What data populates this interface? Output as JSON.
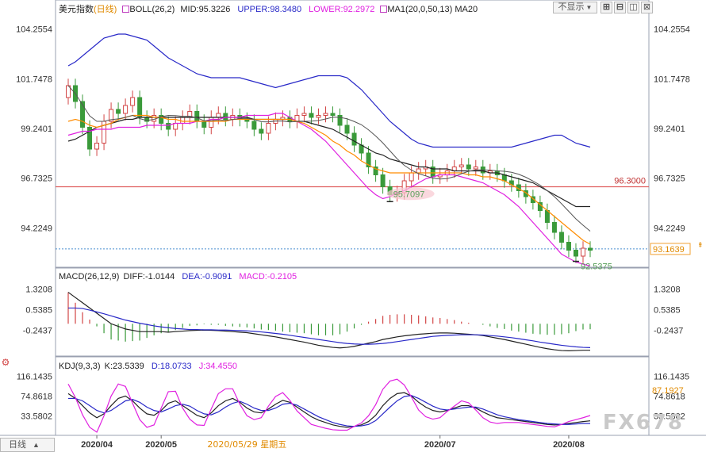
{
  "instrument": "美元指数",
  "period": "日线",
  "panels": {
    "price": {
      "boll_label": "BOLL(26,2)",
      "mid_label": "MID:95.3226",
      "upper_label": "UPPER:98.3480",
      "lower_label": "LOWER:92.2972",
      "ma_label": "MA1(20,0,50,13) MA20",
      "y_ticks": [
        "104.2554",
        "101.7478",
        "99.2401",
        "96.7325",
        "94.2249"
      ],
      "level_line": {
        "value": 96.3,
        "label": "96.3000"
      },
      "low_marker": {
        "value": 95.7097,
        "label": "95.7097"
      },
      "last_low_marker": {
        "value": 92.5375,
        "label": "92.5375"
      },
      "current_price": {
        "value": 93.1639,
        "label": "93.1639"
      }
    },
    "macd": {
      "title": "MACD(26,12,9)",
      "diff_label": "DIFF:-1.0144",
      "dea_label": "DEA:-0.9091",
      "macd_label": "MACD:-0.2105",
      "y_ticks": [
        "1.3208",
        "0.5385",
        "-0.2437"
      ]
    },
    "kdj": {
      "title": "KDJ(9,3,3)",
      "k_label": "K:23.5339",
      "d_label": "D:18.0733",
      "j_label": "J:34.4550",
      "y_ticks": [
        "116.1435",
        "74.8618",
        "33.5802"
      ],
      "right_badge": "87.1927"
    }
  },
  "x_axis": {
    "labels": [
      "2020/04",
      "2020/05",
      "2020/07",
      "2020/08"
    ],
    "cursor_date": "2020/05/29 星期五",
    "period_button": "日线"
  },
  "toolbar": {
    "display_button": "不显示"
  },
  "watermark": "FX678",
  "colors": {
    "up": "#d24545",
    "down": "#3a9a3a",
    "upper_band": "#2929c8",
    "mid_band": "#222222",
    "lower_band": "#e020e0",
    "ma": "#ff8c00",
    "level": "#e06060",
    "diff": "#222222",
    "dea": "#2929c8",
    "k": "#222222",
    "d": "#2929c8",
    "j": "#e020e0"
  },
  "chart_data": [
    {
      "type": "candlestick",
      "title": "美元指数",
      "ylim": [
        92.2,
        105.0
      ],
      "series": [
        {
          "name": "close",
          "values": [
            101.4,
            100.6,
            99.3,
            98.2,
            98.5,
            99.6,
            100.2,
            100.0,
            100.4,
            100.8,
            99.8,
            99.6,
            99.9,
            99.5,
            99.2,
            99.5,
            99.8,
            100.1,
            99.6,
            99.3,
            99.8,
            100.0,
            99.7,
            99.9,
            99.7,
            99.6,
            99.2,
            99.0,
            99.5,
            99.7,
            99.8,
            99.6,
            99.9,
            100.0,
            99.8,
            99.9,
            100.0,
            99.9,
            99.4,
            99.0,
            98.4,
            98.0,
            97.3,
            96.9,
            96.3,
            95.9,
            96.0,
            96.6,
            97.0,
            97.2,
            97.3,
            96.8,
            96.9,
            97.1,
            97.3,
            97.4,
            97.2,
            97.3,
            97.0,
            97.1,
            96.9,
            96.6,
            96.4,
            96.1,
            95.8,
            95.5,
            95.1,
            94.5,
            94.0,
            93.5,
            93.1,
            92.8,
            93.2,
            93.1
          ]
        },
        {
          "name": "MID",
          "values": [
            98.6,
            98.7,
            98.9,
            99.1,
            99.3,
            99.4,
            99.5,
            99.6,
            99.7,
            99.7,
            99.8,
            99.8,
            99.8,
            99.8,
            99.8,
            99.8,
            99.8,
            99.8,
            99.8,
            99.8,
            99.8,
            99.8,
            99.8,
            99.8,
            99.8,
            99.8,
            99.7,
            99.7,
            99.7,
            99.7,
            99.7,
            99.7,
            99.6,
            99.6,
            99.5,
            99.4,
            99.3,
            99.2,
            99.0,
            98.8,
            98.6,
            98.4,
            98.2,
            98.0,
            97.9,
            97.7,
            97.6,
            97.5,
            97.4,
            97.3,
            97.3,
            97.2,
            97.2,
            97.2,
            97.1,
            97.1,
            97.1,
            97.1,
            97.1,
            97.0,
            97.0,
            96.9,
            96.8,
            96.7,
            96.6,
            96.5,
            96.3,
            96.1,
            95.9,
            95.7,
            95.5,
            95.3,
            95.3,
            95.3
          ]
        },
        {
          "name": "UPPER",
          "values": [
            102.4,
            102.6,
            102.9,
            103.2,
            103.5,
            103.8,
            103.9,
            104.0,
            104.0,
            103.9,
            103.8,
            103.7,
            103.4,
            103.1,
            102.8,
            102.6,
            102.4,
            102.2,
            102.0,
            101.9,
            101.8,
            101.8,
            101.8,
            101.8,
            101.8,
            101.7,
            101.6,
            101.5,
            101.4,
            101.3,
            101.4,
            101.5,
            101.6,
            101.7,
            101.8,
            101.9,
            101.9,
            101.9,
            101.9,
            101.8,
            101.5,
            101.2,
            100.8,
            100.4,
            100.0,
            99.6,
            99.3,
            99.0,
            98.7,
            98.5,
            98.4,
            98.3,
            98.3,
            98.3,
            98.3,
            98.3,
            98.3,
            98.3,
            98.3,
            98.3,
            98.3,
            98.3,
            98.3,
            98.4,
            98.5,
            98.6,
            98.7,
            98.8,
            98.9,
            98.9,
            98.7,
            98.5,
            98.4,
            98.3
          ]
        },
        {
          "name": "LOWER",
          "values": [
            98.9,
            99.0,
            99.1,
            99.1,
            99.2,
            99.2,
            99.2,
            99.3,
            99.3,
            99.3,
            99.3,
            99.4,
            99.4,
            99.4,
            99.4,
            99.5,
            99.5,
            99.5,
            99.6,
            99.6,
            99.7,
            99.7,
            99.8,
            99.8,
            99.8,
            99.9,
            99.9,
            99.9,
            99.9,
            100.0,
            100.0,
            99.8,
            99.6,
            99.4,
            99.2,
            98.9,
            98.6,
            98.2,
            97.8,
            97.4,
            97.0,
            96.6,
            96.2,
            95.9,
            95.7,
            95.8,
            96.0,
            96.1,
            96.3,
            96.5,
            96.7,
            96.8,
            96.9,
            96.9,
            96.9,
            96.8,
            96.7,
            96.6,
            96.5,
            96.3,
            96.1,
            95.9,
            95.6,
            95.3,
            94.9,
            94.5,
            94.1,
            93.7,
            93.3,
            92.9,
            92.7,
            92.5,
            92.4,
            92.3
          ]
        },
        {
          "name": "MA20",
          "values": [
            99.6,
            99.7,
            99.6,
            99.4,
            99.3,
            99.4,
            99.5,
            99.7,
            99.8,
            99.9,
            99.9,
            99.9,
            99.8,
            99.8,
            99.7,
            99.7,
            99.6,
            99.6,
            99.6,
            99.6,
            99.6,
            99.6,
            99.6,
            99.7,
            99.7,
            99.7,
            99.7,
            99.7,
            99.7,
            99.7,
            99.7,
            99.7,
            99.6,
            99.5,
            99.3,
            99.1,
            98.9,
            98.6,
            98.4,
            98.1,
            97.9,
            97.6,
            97.4,
            97.2,
            97.1,
            97.0,
            97.0,
            97.0,
            97.0,
            97.0,
            97.0,
            97.0,
            97.0,
            97.0,
            97.0,
            97.0,
            96.9,
            96.9,
            96.8,
            96.8,
            96.7,
            96.6,
            96.4,
            96.2,
            96.0,
            95.7,
            95.4,
            95.1,
            94.8,
            94.5,
            94.2,
            93.9,
            93.6,
            93.4
          ]
        }
      ],
      "annotations": [
        {
          "label": "96.3000",
          "y": 96.3
        },
        {
          "label": "95.7097",
          "y": 95.7097
        },
        {
          "label": "92.5375",
          "y": 92.5375
        }
      ]
    },
    {
      "type": "line",
      "title": "MACD(26,12,9)",
      "ylim": [
        -1.2,
        1.7
      ],
      "series": [
        {
          "name": "DIFF",
          "values": [
            1.2,
            1.0,
            0.8,
            0.6,
            0.4,
            0.2,
            0.0,
            -0.1,
            -0.2,
            -0.25,
            -0.3,
            -0.3,
            -0.3,
            -0.3,
            -0.32,
            -0.3,
            -0.28,
            -0.26,
            -0.25,
            -0.24,
            -0.25,
            -0.26,
            -0.28,
            -0.3,
            -0.32,
            -0.34,
            -0.38,
            -0.42,
            -0.46,
            -0.5,
            -0.55,
            -0.6,
            -0.65,
            -0.7,
            -0.76,
            -0.82,
            -0.86,
            -0.9,
            -0.92,
            -0.9,
            -0.86,
            -0.8,
            -0.74,
            -0.68,
            -0.6,
            -0.55,
            -0.5,
            -0.46,
            -0.43,
            -0.4,
            -0.38,
            -0.36,
            -0.35,
            -0.35,
            -0.36,
            -0.38,
            -0.4,
            -0.42,
            -0.45,
            -0.5,
            -0.55,
            -0.6,
            -0.66,
            -0.72,
            -0.78,
            -0.84,
            -0.9,
            -0.95,
            -0.99,
            -1.02,
            -1.03,
            -1.02,
            -1.01,
            -1.01
          ]
        },
        {
          "name": "DEA",
          "values": [
            0.6,
            0.6,
            0.58,
            0.52,
            0.45,
            0.38,
            0.3,
            0.22,
            0.14,
            0.08,
            0.02,
            -0.03,
            -0.08,
            -0.12,
            -0.15,
            -0.18,
            -0.2,
            -0.22,
            -0.22,
            -0.23,
            -0.23,
            -0.24,
            -0.24,
            -0.25,
            -0.26,
            -0.27,
            -0.29,
            -0.31,
            -0.34,
            -0.37,
            -0.4,
            -0.44,
            -0.48,
            -0.52,
            -0.56,
            -0.6,
            -0.64,
            -0.68,
            -0.72,
            -0.75,
            -0.77,
            -0.78,
            -0.78,
            -0.77,
            -0.75,
            -0.72,
            -0.68,
            -0.64,
            -0.6,
            -0.56,
            -0.52,
            -0.48,
            -0.46,
            -0.44,
            -0.43,
            -0.42,
            -0.42,
            -0.42,
            -0.43,
            -0.45,
            -0.47,
            -0.5,
            -0.53,
            -0.57,
            -0.61,
            -0.65,
            -0.7,
            -0.74,
            -0.78,
            -0.82,
            -0.85,
            -0.88,
            -0.9,
            -0.91
          ]
        },
        {
          "name": "MACD",
          "values": [
            1.2,
            0.8,
            0.44,
            0.16,
            -0.1,
            -0.36,
            -0.6,
            -0.64,
            -0.68,
            -0.66,
            -0.64,
            -0.54,
            -0.44,
            -0.36,
            -0.34,
            -0.24,
            -0.16,
            -0.08,
            -0.06,
            -0.02,
            -0.04,
            -0.04,
            -0.08,
            -0.1,
            -0.12,
            -0.14,
            -0.18,
            -0.22,
            -0.24,
            -0.26,
            -0.3,
            -0.32,
            -0.34,
            -0.36,
            -0.4,
            -0.44,
            -0.44,
            -0.44,
            -0.4,
            -0.3,
            -0.18,
            -0.04,
            0.08,
            0.18,
            0.3,
            0.34,
            0.36,
            0.36,
            0.34,
            0.32,
            0.28,
            0.24,
            0.22,
            0.18,
            0.14,
            0.08,
            0.04,
            0.0,
            -0.04,
            -0.1,
            -0.16,
            -0.2,
            -0.26,
            -0.3,
            -0.34,
            -0.38,
            -0.4,
            -0.42,
            -0.42,
            -0.4,
            -0.36,
            -0.28,
            -0.22,
            -0.21
          ]
        }
      ]
    },
    {
      "type": "line",
      "title": "KDJ(9,3,3)",
      "ylim": [
        -5,
        130
      ],
      "series": [
        {
          "name": "K",
          "values": [
            80,
            70,
            55,
            40,
            30,
            38,
            55,
            70,
            75,
            65,
            50,
            38,
            35,
            45,
            60,
            65,
            55,
            45,
            35,
            30,
            40,
            55,
            65,
            70,
            62,
            50,
            42,
            40,
            48,
            58,
            66,
            62,
            52,
            42,
            32,
            25,
            20,
            15,
            12,
            10,
            12,
            15,
            22,
            35,
            55,
            70,
            80,
            82,
            75,
            62,
            52,
            45,
            42,
            45,
            50,
            55,
            55,
            50,
            42,
            35,
            30,
            28,
            26,
            24,
            22,
            20,
            18,
            16,
            15,
            16,
            18,
            20,
            22,
            23.5
          ]
        },
        {
          "name": "D",
          "values": [
            70,
            70,
            65,
            55,
            45,
            40,
            45,
            55,
            65,
            68,
            62,
            52,
            45,
            42,
            48,
            55,
            58,
            54,
            45,
            38,
            36,
            42,
            52,
            60,
            64,
            58,
            50,
            45,
            45,
            50,
            58,
            60,
            56,
            48,
            40,
            32,
            26,
            20,
            16,
            13,
            12,
            13,
            16,
            24,
            38,
            52,
            65,
            74,
            76,
            70,
            62,
            54,
            48,
            46,
            48,
            50,
            52,
            52,
            48,
            42,
            36,
            32,
            29,
            26,
            24,
            22,
            20,
            18,
            17,
            16,
            16,
            17,
            18,
            18.1
          ]
        },
        {
          "name": "J",
          "values": [
            100,
            72,
            36,
            10,
            0,
            34,
            75,
            100,
            95,
            60,
            26,
            10,
            15,
            50,
            84,
            85,
            50,
            27,
            15,
            14,
            48,
            80,
            90,
            90,
            58,
            34,
            26,
            30,
            54,
            74,
            82,
            66,
            44,
            30,
            16,
            12,
            8,
            5,
            4,
            4,
            12,
            19,
            34,
            57,
            89,
            106,
            110,
            98,
            73,
            46,
            32,
            27,
            30,
            43,
            54,
            65,
            61,
            46,
            30,
            21,
            18,
            20,
            20,
            20,
            18,
            16,
            14,
            12,
            11,
            16,
            22,
            26,
            30,
            34.5
          ]
        }
      ]
    }
  ]
}
